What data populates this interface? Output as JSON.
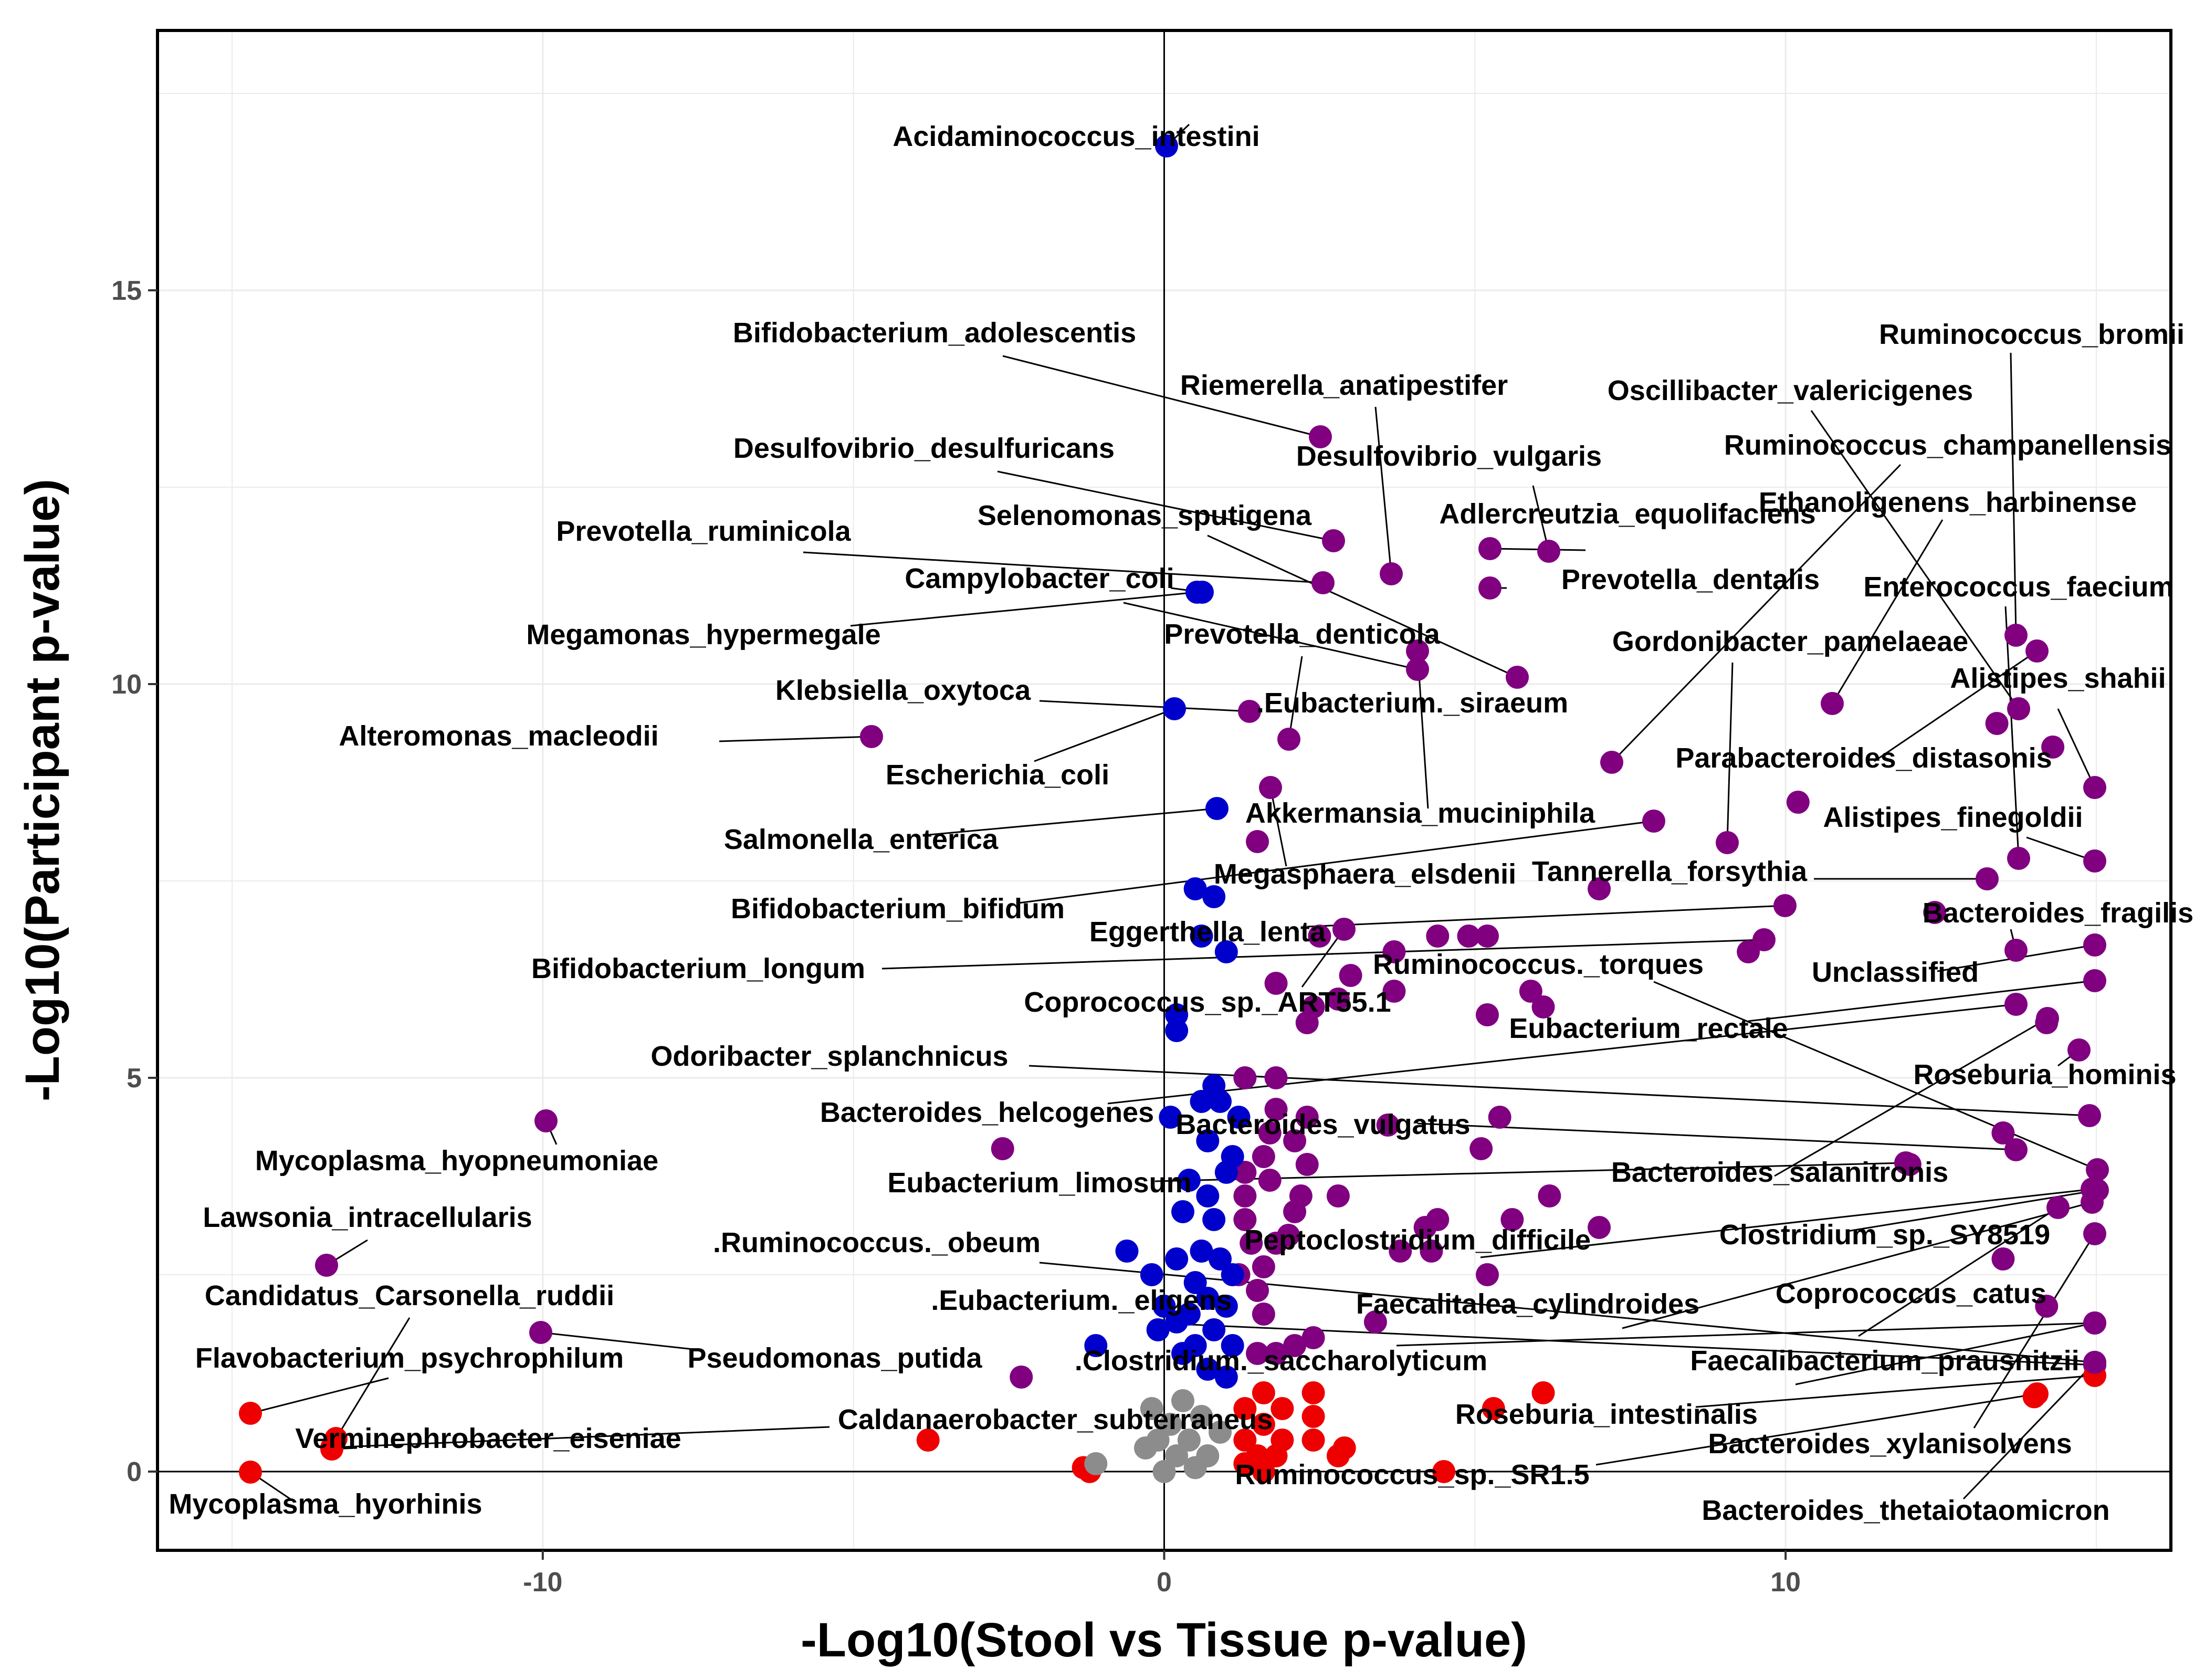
{
  "chart_data": {
    "type": "scatter",
    "xlabel": "-Log10(Stool vs Tissue p-value)",
    "ylabel": "-Log10(Participant p-value)",
    "xlim": [
      -16.2,
      16.2
    ],
    "ylim": [
      -1.0,
      18.3
    ],
    "x_ticks": [
      -10,
      0,
      10
    ],
    "y_ticks": [
      0,
      5,
      10,
      15
    ],
    "grid": true,
    "legend": "none",
    "colors": {
      "blue": "#0000cc",
      "purple": "#800080",
      "red": "#ee0000",
      "grey": "#8c8c8c"
    },
    "labeled_points": [
      {
        "label": "Acidaminococcus_intestini",
        "x": 0.6,
        "y": 17.4,
        "color": "blue"
      },
      {
        "label": "Bifidobacterium_adolescentis",
        "x": 2.4,
        "y": 12.9,
        "color": "purple"
      },
      {
        "label": "Riemerella_anatipestifer",
        "x": 3.4,
        "y": 11.2,
        "color": "purple"
      },
      {
        "label": "Desulfovibrio_desulfuricans",
        "x": 2.6,
        "y": 11.6,
        "color": "purple"
      },
      {
        "label": "Desulfovibrio_vulgaris",
        "x": 3.3,
        "y": 10.8,
        "color": "purple"
      },
      {
        "label": "Selenomonas_sputigena",
        "x": 5.5,
        "y": 9.9,
        "color": "purple"
      },
      {
        "label": "Prevotella_ruminicola",
        "x": 2.5,
        "y": 11.1,
        "color": "purple"
      },
      {
        "label": "Adlercreutzia_equolifaciens",
        "x": 5.0,
        "y": 11.6,
        "color": "purple"
      },
      {
        "label": "Prevotella_dentalis",
        "x": 5.0,
        "y": 11.1,
        "color": "purple"
      },
      {
        "label": "Campylobacter_coli",
        "x": 0.5,
        "y": 11.0,
        "color": "blue"
      },
      {
        "label": "Megamonas_hypermegale",
        "x": 0.5,
        "y": 11.0,
        "color": "blue"
      },
      {
        "label": "Prevotella_denticola",
        "x": 4.0,
        "y": 10.0,
        "color": "purple"
      },
      {
        "label": "Gordonibacter_pamelaeae",
        "x": 8.9,
        "y": 7.8,
        "color": "purple"
      },
      {
        "label": "Klebsiella_oxytoca",
        "x": 1.3,
        "y": 9.5,
        "color": "purple"
      },
      {
        "label": ".Eubacterium._siraeum",
        "x": 1.9,
        "y": 9.1,
        "color": "purple"
      },
      {
        "label": "Alteromonas_macleodii",
        "x": -4.8,
        "y": 9.2,
        "color": "purple"
      },
      {
        "label": "Escherichia_coli",
        "x": 0.0,
        "y": 9.5,
        "color": "blue"
      },
      {
        "label": "Akkermansia_muciniphila",
        "x": 7.7,
        "y": 8.1,
        "color": "purple"
      },
      {
        "label": "Salmonella_enterica",
        "x": 0.7,
        "y": 8.3,
        "color": "blue"
      },
      {
        "label": "Megasphaera_elsdenii",
        "x": 1.6,
        "y": 8.6,
        "color": "purple"
      },
      {
        "label": "Bifidobacterium_bifidum",
        "x": 7.7,
        "y": 8.1,
        "color": "purple"
      },
      {
        "label": "Tannerella_forsythia",
        "x": 12.4,
        "y": 7.4,
        "color": "purple"
      },
      {
        "label": "Eggerthella_lenta",
        "x": 10.3,
        "y": 7.0,
        "color": "purple"
      },
      {
        "label": "Bifidobacterium_longum",
        "x": 9.9,
        "y": 7.0,
        "color": "purple"
      },
      {
        "label": "Ruminococcus._torques",
        "x": 14.6,
        "y": 3.8,
        "color": "purple"
      },
      {
        "label": "Coprococcus_sp._ART55.1",
        "x": 1.6,
        "y": 6.5,
        "color": "purple"
      },
      {
        "label": "Eubacterium_rectale",
        "x": 14.6,
        "y": 6.1,
        "color": "purple"
      },
      {
        "label": "Odoribacter_splanchnicus",
        "x": 14.5,
        "y": 4.5,
        "color": "purple"
      },
      {
        "label": "Bacteroides_helcogenes",
        "x": 13.5,
        "y": 5.9,
        "color": "purple"
      },
      {
        "label": "Bacteroides_vulgatus",
        "x": 13.4,
        "y": 4.1,
        "color": "purple"
      },
      {
        "label": "Eubacterium_limosum",
        "x": 12.0,
        "y": 3.9,
        "color": "purple"
      },
      {
        "label": "Bacteroides_salanitronis",
        "x": 13.9,
        "y": 5.6,
        "color": "purple"
      },
      {
        "label": "Clostridium_sp._SY8519",
        "x": 14.6,
        "y": 3.6,
        "color": "purple"
      },
      {
        "label": ".Ruminococcus._obeum",
        "x": 14.5,
        "y": 1.4,
        "color": "purple"
      },
      {
        "label": "Peptoclostridium_difficile",
        "x": 14.5,
        "y": 3.6,
        "color": "purple"
      },
      {
        "label": "Candidatus_Carsonella_ruddii",
        "x": -13.3,
        "y": 0.5,
        "color": "red"
      },
      {
        "label": "Faecalitalea_cylindroides",
        "x": 14.6,
        "y": 3.3,
        "color": "purple"
      },
      {
        "label": "Coprococcus_catus",
        "x": 13.5,
        "y": 1.4,
        "color": "purple"
      },
      {
        "label": "Lawsonia_intracellularis",
        "x": -13.4,
        "y": 2.5,
        "color": "purple"
      },
      {
        "label": "Mycoplasma_hyopneumoniae",
        "x": -10.0,
        "y": 4.4,
        "color": "purple"
      },
      {
        "label": "Flavobacterium_psychrophilum",
        "x": -14.7,
        "y": 0.7,
        "color": "red"
      },
      {
        "label": "Pseudomonas_putida",
        "x": -10.1,
        "y": 1.8,
        "color": "purple"
      },
      {
        "label": ".Eubacterium._eligens",
        "x": 14.6,
        "y": 1.4,
        "color": "purple"
      },
      {
        "label": ".Clostridium._saccharolyticum",
        "x": 13.9,
        "y": 3.2,
        "color": "purple"
      },
      {
        "label": "Faecalibacterium_prausnitzii",
        "x": 14.6,
        "y": 3.1,
        "color": "purple"
      },
      {
        "label": "Roseburia_intestinalis",
        "x": 14.0,
        "y": 1.0,
        "color": "red"
      },
      {
        "label": "Caldanaerobacter_subterraneus",
        "x": -13.4,
        "y": 0.3,
        "color": "red"
      },
      {
        "label": "Verminephrobacter_eiseniae",
        "x": -13.3,
        "y": 0.4,
        "color": "red"
      },
      {
        "label": "Bacteroides_xylanisolvens",
        "x": 14.6,
        "y": 3.1,
        "color": "purple"
      },
      {
        "label": "Mycoplasma_hyorhinis",
        "x": -14.7,
        "y": 0.0,
        "color": "red"
      },
      {
        "label": "Ruminococcus_sp._SR1.5",
        "x": 14.1,
        "y": 1.0,
        "color": "red"
      },
      {
        "label": "Bacteroides_thetaiotaomicron",
        "x": 14.6,
        "y": 1.3,
        "color": "purple"
      },
      {
        "label": "Ruminococcus_bromii",
        "x": 13.5,
        "y": 10.4,
        "color": "purple"
      },
      {
        "label": "Oscillibacter_valericigenes",
        "x": 13.5,
        "y": 9.5,
        "color": "purple"
      },
      {
        "label": "Ruminococcus_champanellensis",
        "x": 7.0,
        "y": 8.9,
        "color": "purple"
      },
      {
        "label": "Ethanoligenens_harbinense",
        "x": 10.4,
        "y": 9.7,
        "color": "purple"
      },
      {
        "label": "Enterococcus_faecium",
        "x": 13.5,
        "y": 7.6,
        "color": "purple"
      },
      {
        "label": "Alistipes_shahii",
        "x": 14.6,
        "y": 8.5,
        "color": "purple"
      },
      {
        "label": "Parabacteroides_distasonis",
        "x": 13.9,
        "y": 10.3,
        "color": "purple"
      },
      {
        "label": "Alistipes_finegoldii",
        "x": 14.6,
        "y": 7.6,
        "color": "purple"
      },
      {
        "label": "Bacteroides_fragilis",
        "x": 13.5,
        "y": 6.6,
        "color": "purple"
      },
      {
        "label": "Unclassified",
        "x": 14.6,
        "y": 6.6,
        "color": "purple"
      },
      {
        "label": "Roseburia_hominis",
        "x": 14.4,
        "y": 5.3,
        "color": "purple"
      }
    ],
    "other_points": [
      {
        "x": 1.5,
        "y": 8.0,
        "color": "purple"
      },
      {
        "x": 3.0,
        "y": 6.3,
        "color": "purple"
      },
      {
        "x": 3.7,
        "y": 6.6,
        "color": "purple"
      },
      {
        "x": 4.4,
        "y": 6.8,
        "color": "purple"
      },
      {
        "x": 4.9,
        "y": 6.8,
        "color": "purple"
      },
      {
        "x": 5.2,
        "y": 6.8,
        "color": "purple"
      },
      {
        "x": 2.5,
        "y": 6.8,
        "color": "purple"
      },
      {
        "x": 1.8,
        "y": 6.2,
        "color": "purple"
      },
      {
        "x": 2.4,
        "y": 5.9,
        "color": "purple"
      },
      {
        "x": 2.8,
        "y": 6.0,
        "color": "purple"
      },
      {
        "x": 3.7,
        "y": 6.1,
        "color": "purple"
      },
      {
        "x": 5.2,
        "y": 5.8,
        "color": "purple"
      },
      {
        "x": 5.9,
        "y": 6.1,
        "color": "purple"
      },
      {
        "x": 6.1,
        "y": 5.9,
        "color": "purple"
      },
      {
        "x": 7.0,
        "y": 7.4,
        "color": "purple"
      },
      {
        "x": 9.4,
        "y": 6.6,
        "color": "purple"
      },
      {
        "x": 12.4,
        "y": 7.1,
        "color": "purple"
      },
      {
        "x": 13.4,
        "y": 9.5,
        "color": "purple"
      },
      {
        "x": 14.3,
        "y": 9.2,
        "color": "purple"
      },
      {
        "x": 10.2,
        "y": 8.5,
        "color": "purple"
      },
      {
        "x": 14.2,
        "y": 5.7,
        "color": "purple"
      },
      {
        "x": 2.3,
        "y": 5.7,
        "color": "purple"
      },
      {
        "x": 1.3,
        "y": 5.0,
        "color": "purple"
      },
      {
        "x": 1.8,
        "y": 5.0,
        "color": "purple"
      },
      {
        "x": 1.8,
        "y": 4.6,
        "color": "purple"
      },
      {
        "x": 2.3,
        "y": 4.5,
        "color": "purple"
      },
      {
        "x": 1.7,
        "y": 4.3,
        "color": "purple"
      },
      {
        "x": 2.1,
        "y": 4.2,
        "color": "purple"
      },
      {
        "x": 1.6,
        "y": 4.0,
        "color": "purple"
      },
      {
        "x": 2.3,
        "y": 3.9,
        "color": "purple"
      },
      {
        "x": 1.3,
        "y": 3.8,
        "color": "purple"
      },
      {
        "x": 2.2,
        "y": 3.5,
        "color": "purple"
      },
      {
        "x": 1.3,
        "y": 3.5,
        "color": "purple"
      },
      {
        "x": 1.7,
        "y": 3.7,
        "color": "purple"
      },
      {
        "x": 2.8,
        "y": 3.5,
        "color": "purple"
      },
      {
        "x": 2.1,
        "y": 3.3,
        "color": "purple"
      },
      {
        "x": 1.3,
        "y": 3.2,
        "color": "purple"
      },
      {
        "x": 1.4,
        "y": 2.9,
        "color": "purple"
      },
      {
        "x": 1.8,
        "y": 2.9,
        "color": "purple"
      },
      {
        "x": 2.0,
        "y": 3.0,
        "color": "purple"
      },
      {
        "x": 3.6,
        "y": 4.4,
        "color": "purple"
      },
      {
        "x": 5.4,
        "y": 4.5,
        "color": "purple"
      },
      {
        "x": 5.1,
        "y": 4.1,
        "color": "purple"
      },
      {
        "x": 6.2,
        "y": 3.5,
        "color": "purple"
      },
      {
        "x": 5.6,
        "y": 3.2,
        "color": "purple"
      },
      {
        "x": 4.2,
        "y": 3.1,
        "color": "purple"
      },
      {
        "x": 4.4,
        "y": 3.2,
        "color": "purple"
      },
      {
        "x": 7.0,
        "y": 3.1,
        "color": "purple"
      },
      {
        "x": 3.8,
        "y": 2.8,
        "color": "purple"
      },
      {
        "x": 4.3,
        "y": 2.8,
        "color": "purple"
      },
      {
        "x": 5.2,
        "y": 2.5,
        "color": "purple"
      },
      {
        "x": 3.4,
        "y": 1.9,
        "color": "purple"
      },
      {
        "x": 1.6,
        "y": 2.6,
        "color": "purple"
      },
      {
        "x": 1.2,
        "y": 2.5,
        "color": "purple"
      },
      {
        "x": 1.5,
        "y": 2.3,
        "color": "purple"
      },
      {
        "x": 1.6,
        "y": 2.0,
        "color": "purple"
      },
      {
        "x": 2.4,
        "y": 1.7,
        "color": "purple"
      },
      {
        "x": 2.1,
        "y": 1.6,
        "color": "purple"
      },
      {
        "x": 1.5,
        "y": 1.5,
        "color": "purple"
      },
      {
        "x": 1.8,
        "y": 1.5,
        "color": "purple"
      },
      {
        "x": -2.6,
        "y": 4.1,
        "color": "purple"
      },
      {
        "x": -2.3,
        "y": 1.2,
        "color": "purple"
      },
      {
        "x": 14.2,
        "y": 2.1,
        "color": "purple"
      },
      {
        "x": 13.5,
        "y": 2.7,
        "color": "purple"
      },
      {
        "x": 13.5,
        "y": 4.3,
        "color": "purple"
      },
      {
        "x": 12.0,
        "y": 3.9,
        "color": "purple"
      },
      {
        "x": 0.5,
        "y": 7.4,
        "color": "blue"
      },
      {
        "x": 0.8,
        "y": 7.3,
        "color": "blue"
      },
      {
        "x": 0.6,
        "y": 6.8,
        "color": "blue"
      },
      {
        "x": 1.0,
        "y": 6.6,
        "color": "blue"
      },
      {
        "x": 0.2,
        "y": 5.8,
        "color": "blue"
      },
      {
        "x": 0.2,
        "y": 5.6,
        "color": "blue"
      },
      {
        "x": 0.8,
        "y": 4.9,
        "color": "blue"
      },
      {
        "x": 0.6,
        "y": 4.7,
        "color": "blue"
      },
      {
        "x": 0.9,
        "y": 4.7,
        "color": "blue"
      },
      {
        "x": 1.2,
        "y": 4.5,
        "color": "blue"
      },
      {
        "x": 0.1,
        "y": 4.5,
        "color": "blue"
      },
      {
        "x": 0.7,
        "y": 4.2,
        "color": "blue"
      },
      {
        "x": 1.1,
        "y": 4.0,
        "color": "blue"
      },
      {
        "x": 0.4,
        "y": 3.7,
        "color": "blue"
      },
      {
        "x": 1.0,
        "y": 3.8,
        "color": "blue"
      },
      {
        "x": 0.7,
        "y": 3.5,
        "color": "blue"
      },
      {
        "x": 0.3,
        "y": 3.3,
        "color": "blue"
      },
      {
        "x": 0.8,
        "y": 3.2,
        "color": "blue"
      },
      {
        "x": -0.6,
        "y": 2.8,
        "color": "blue"
      },
      {
        "x": 0.6,
        "y": 2.8,
        "color": "blue"
      },
      {
        "x": 0.2,
        "y": 2.7,
        "color": "blue"
      },
      {
        "x": 0.9,
        "y": 2.7,
        "color": "blue"
      },
      {
        "x": -0.2,
        "y": 2.5,
        "color": "blue"
      },
      {
        "x": 0.5,
        "y": 2.4,
        "color": "blue"
      },
      {
        "x": 1.1,
        "y": 2.5,
        "color": "blue"
      },
      {
        "x": 0.7,
        "y": 2.2,
        "color": "blue"
      },
      {
        "x": 0.0,
        "y": 2.1,
        "color": "blue"
      },
      {
        "x": 0.4,
        "y": 2.0,
        "color": "blue"
      },
      {
        "x": 1.0,
        "y": 2.1,
        "color": "blue"
      },
      {
        "x": 0.2,
        "y": 1.9,
        "color": "blue"
      },
      {
        "x": 0.8,
        "y": 1.8,
        "color": "blue"
      },
      {
        "x": -0.1,
        "y": 1.8,
        "color": "blue"
      },
      {
        "x": -1.1,
        "y": 1.6,
        "color": "blue"
      },
      {
        "x": 0.5,
        "y": 1.6,
        "color": "blue"
      },
      {
        "x": 1.1,
        "y": 1.6,
        "color": "blue"
      },
      {
        "x": 0.3,
        "y": 1.5,
        "color": "blue"
      },
      {
        "x": 0.7,
        "y": 1.3,
        "color": "blue"
      },
      {
        "x": 1.0,
        "y": 1.2,
        "color": "blue"
      },
      {
        "x": 1.6,
        "y": 1.0,
        "color": "red"
      },
      {
        "x": 2.4,
        "y": 1.0,
        "color": "red"
      },
      {
        "x": 1.3,
        "y": 0.8,
        "color": "red"
      },
      {
        "x": 1.9,
        "y": 0.8,
        "color": "red"
      },
      {
        "x": 2.4,
        "y": 0.7,
        "color": "red"
      },
      {
        "x": 1.6,
        "y": 0.6,
        "color": "red"
      },
      {
        "x": 1.3,
        "y": 0.4,
        "color": "red"
      },
      {
        "x": 1.9,
        "y": 0.4,
        "color": "red"
      },
      {
        "x": 2.4,
        "y": 0.4,
        "color": "red"
      },
      {
        "x": 1.5,
        "y": 0.2,
        "color": "red"
      },
      {
        "x": 1.8,
        "y": 0.2,
        "color": "red"
      },
      {
        "x": 2.9,
        "y": 0.3,
        "color": "red"
      },
      {
        "x": 2.8,
        "y": 0.2,
        "color": "red"
      },
      {
        "x": 1.3,
        "y": 0.1,
        "color": "red"
      },
      {
        "x": 1.6,
        "y": 0.0,
        "color": "red"
      },
      {
        "x": -1.3,
        "y": 0.05,
        "color": "red"
      },
      {
        "x": -1.2,
        "y": 0.0,
        "color": "red"
      },
      {
        "x": -3.8,
        "y": 0.4,
        "color": "red"
      },
      {
        "x": 5.3,
        "y": 0.8,
        "color": "red"
      },
      {
        "x": 6.1,
        "y": 1.0,
        "color": "red"
      },
      {
        "x": 4.5,
        "y": 0.0,
        "color": "red"
      },
      {
        "x": 14.0,
        "y": 0.95,
        "color": "red"
      },
      {
        "x": 0.3,
        "y": 0.9,
        "color": "grey"
      },
      {
        "x": -0.2,
        "y": 0.8,
        "color": "grey"
      },
      {
        "x": 0.6,
        "y": 0.7,
        "color": "grey"
      },
      {
        "x": 0.1,
        "y": 0.6,
        "color": "grey"
      },
      {
        "x": 0.9,
        "y": 0.5,
        "color": "grey"
      },
      {
        "x": -0.1,
        "y": 0.4,
        "color": "grey"
      },
      {
        "x": 0.4,
        "y": 0.4,
        "color": "grey"
      },
      {
        "x": -0.3,
        "y": 0.3,
        "color": "grey"
      },
      {
        "x": 0.2,
        "y": 0.2,
        "color": "grey"
      },
      {
        "x": 0.7,
        "y": 0.2,
        "color": "grey"
      },
      {
        "x": -1.1,
        "y": 0.1,
        "color": "grey"
      },
      {
        "x": 0.0,
        "y": 0.0,
        "color": "grey"
      },
      {
        "x": 0.5,
        "y": 0.05,
        "color": "grey"
      }
    ]
  }
}
